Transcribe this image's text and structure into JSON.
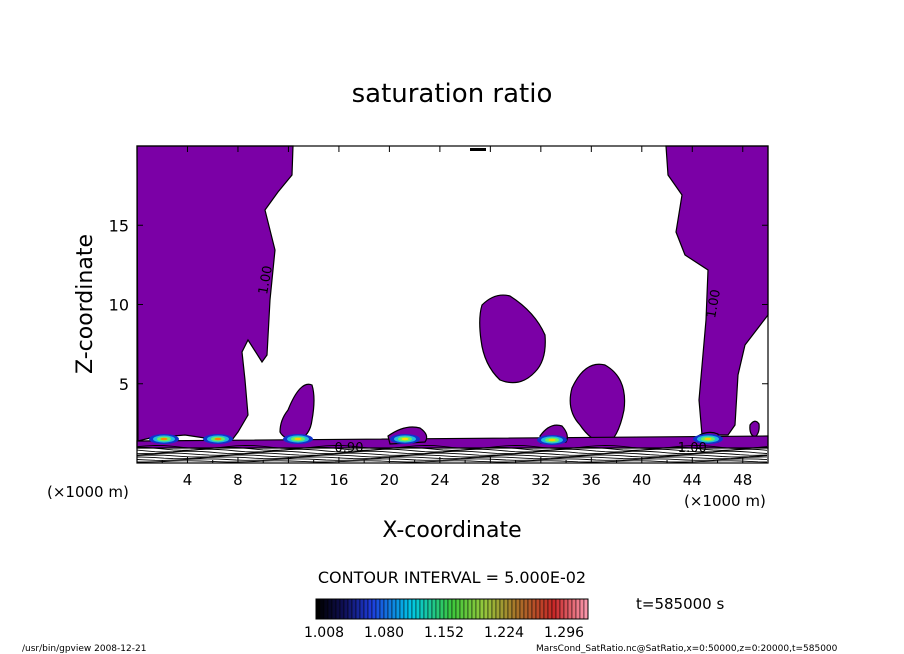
{
  "chart_data": {
    "type": "contour",
    "title": "saturation ratio",
    "xlabel": "X-coordinate",
    "ylabel": "Z-coordinate",
    "x_unit_left": "(×1000 m)",
    "x_unit_right": "(×1000 m)",
    "xlim": [
      0,
      50
    ],
    "ylim": [
      0,
      20
    ],
    "x_ticks": [
      4,
      8,
      12,
      16,
      20,
      24,
      28,
      32,
      36,
      40,
      44,
      48
    ],
    "y_ticks": [
      5,
      10,
      15
    ],
    "contour_labels": [
      {
        "text": "1.00",
        "x": 10.5,
        "z": 11.5
      },
      {
        "text": "1.00",
        "x": 46.0,
        "z": 10.0
      },
      {
        "text": "0.90",
        "x": 16.8,
        "z": 0.7
      },
      {
        "text": "1.00",
        "x": 44.0,
        "z": 0.7
      }
    ],
    "fill_color": "#7B00A6",
    "contour_interval": "CONTOUR INTERVAL = 5.000E-02",
    "colorbar_ticks": [
      "1.008",
      "1.080",
      "1.152",
      "1.224",
      "1.296"
    ],
    "time_label": "t=585000 s",
    "footer_left": "/usr/bin/gpview  2008-12-21",
    "footer_right": "MarsCond_SatRatio.nc@SatRatio,x=0:50000,z=0:20000,t=585000"
  }
}
